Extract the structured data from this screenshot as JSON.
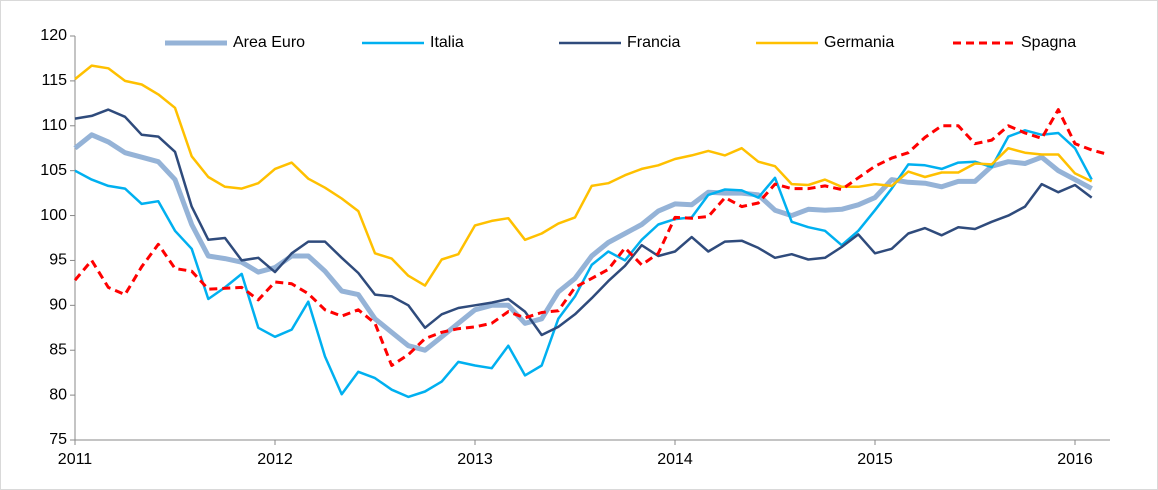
{
  "chart_data": {
    "type": "line",
    "categories": [
      "2011",
      null,
      null,
      null,
      null,
      null,
      null,
      null,
      null,
      null,
      null,
      null,
      "2012",
      null,
      null,
      null,
      null,
      null,
      null,
      null,
      null,
      null,
      null,
      null,
      "2013",
      null,
      null,
      null,
      null,
      null,
      null,
      null,
      null,
      null,
      null,
      null,
      "2014",
      null,
      null,
      null,
      null,
      null,
      null,
      null,
      null,
      null,
      null,
      null,
      "2015",
      null,
      null,
      null,
      null,
      null,
      null,
      null,
      null,
      null,
      null,
      null,
      "2016",
      null,
      null
    ],
    "series": [
      {
        "name": "Area Euro",
        "color": "#95b3d7",
        "line_width": 5,
        "dashed": false,
        "values": [
          107.5,
          109,
          108.2,
          107,
          106.5,
          106,
          104,
          99,
          95.5,
          95.2,
          94.8,
          93.7,
          94.2,
          95.5,
          95.5,
          93.8,
          91.6,
          91.2,
          88.5,
          87,
          85.5,
          85,
          86.5,
          88,
          89.5,
          90,
          90,
          88,
          88.5,
          91.5,
          93,
          95.5,
          97,
          98,
          99,
          100.5,
          101.3,
          101.2,
          102.6,
          102.5,
          102.5,
          102.3,
          100.6,
          100,
          100.7,
          100.6,
          100.7,
          101.2,
          102,
          104,
          103.7,
          103.6,
          103.2,
          103.8,
          103.8,
          105.5,
          106,
          105.8,
          106.5,
          105,
          104,
          103,
          null
        ]
      },
      {
        "name": "Italia",
        "color": "#00b0f0",
        "line_width": 2.5,
        "dashed": false,
        "values": [
          105,
          104,
          103.3,
          103,
          101.3,
          101.6,
          98.3,
          96.3,
          90.7,
          92,
          93.5,
          87.5,
          86.5,
          87.3,
          90.4,
          84.3,
          80.1,
          82.6,
          81.9,
          80.6,
          79.8,
          80.4,
          81.5,
          83.7,
          83.3,
          83,
          85.5,
          82.2,
          83.3,
          88.5,
          91,
          94.5,
          96,
          95,
          97.3,
          99,
          99.6,
          99.8,
          102.3,
          102.9,
          102.8,
          102,
          104.2,
          99.3,
          98.7,
          98.3,
          96.7,
          98.3,
          100.6,
          103,
          105.7,
          105.6,
          105.2,
          105.9,
          106,
          105.4,
          108.8,
          109.5,
          109,
          109.2,
          107.5,
          104,
          null
        ]
      },
      {
        "name": "Francia",
        "color": "#2f4b7c",
        "line_width": 2.5,
        "dashed": false,
        "values": [
          110.8,
          111.1,
          111.8,
          111,
          109,
          108.8,
          107.1,
          101,
          97.3,
          97.5,
          95,
          95.3,
          93.7,
          95.8,
          97.1,
          97.1,
          95.3,
          93.6,
          91.2,
          91,
          90,
          87.5,
          89,
          89.7,
          90,
          90.3,
          90.7,
          89.3,
          86.7,
          87.6,
          89,
          90.8,
          92.7,
          94.4,
          96.7,
          95.5,
          96,
          97.6,
          96,
          97.1,
          97.2,
          96.4,
          95.3,
          95.7,
          95.1,
          95.3,
          96.5,
          97.9,
          95.8,
          96.3,
          98,
          98.6,
          97.8,
          98.7,
          98.5,
          99.3,
          100,
          101,
          103.5,
          102.6,
          103.4,
          102,
          null
        ]
      },
      {
        "name": "Germania",
        "color": "#ffc000",
        "line_width": 2.5,
        "dashed": false,
        "values": [
          115.2,
          116.7,
          116.4,
          115,
          114.6,
          113.5,
          112,
          106.6,
          104.3,
          103.2,
          103,
          103.6,
          105.2,
          105.9,
          104.1,
          103.1,
          101.9,
          100.5,
          95.8,
          95.2,
          93.3,
          92.2,
          95.1,
          95.7,
          98.9,
          99.4,
          99.7,
          97.3,
          98,
          99.1,
          99.8,
          103.3,
          103.6,
          104.5,
          105.2,
          105.6,
          106.3,
          106.7,
          107.2,
          106.7,
          107.5,
          106,
          105.5,
          103.5,
          103.4,
          104,
          103.2,
          103.2,
          103.5,
          103.3,
          104.9,
          104.3,
          104.8,
          104.8,
          105.8,
          105.7,
          107.5,
          107,
          106.8,
          106.8,
          104.7,
          103.8,
          null
        ]
      },
      {
        "name": "Spagna",
        "color": "#ff0000",
        "line_width": 3,
        "dashed": true,
        "values": [
          92.8,
          95,
          92,
          91.2,
          94.3,
          96.8,
          94.1,
          93.8,
          91.8,
          91.9,
          92,
          90.6,
          92.6,
          92.4,
          91.3,
          89.5,
          88.8,
          89.5,
          88,
          83.3,
          84.5,
          86.3,
          87,
          87.4,
          87.6,
          88,
          89.3,
          88.6,
          89.2,
          89.4,
          92,
          93,
          94,
          96.4,
          94.5,
          95.8,
          99.8,
          99.7,
          99.9,
          102,
          101,
          101.4,
          103.5,
          103,
          103,
          103.3,
          102.9,
          104.2,
          105.5,
          106.4,
          107,
          108.7,
          110,
          110,
          108,
          108.4,
          110,
          109.2,
          108.6,
          111.8,
          108,
          107.3,
          106.8
        ]
      }
    ],
    "ylim": [
      75,
      120
    ],
    "yticks": [
      75,
      80,
      85,
      90,
      95,
      100,
      105,
      110,
      115,
      120
    ],
    "grid": false,
    "legend": "top"
  }
}
